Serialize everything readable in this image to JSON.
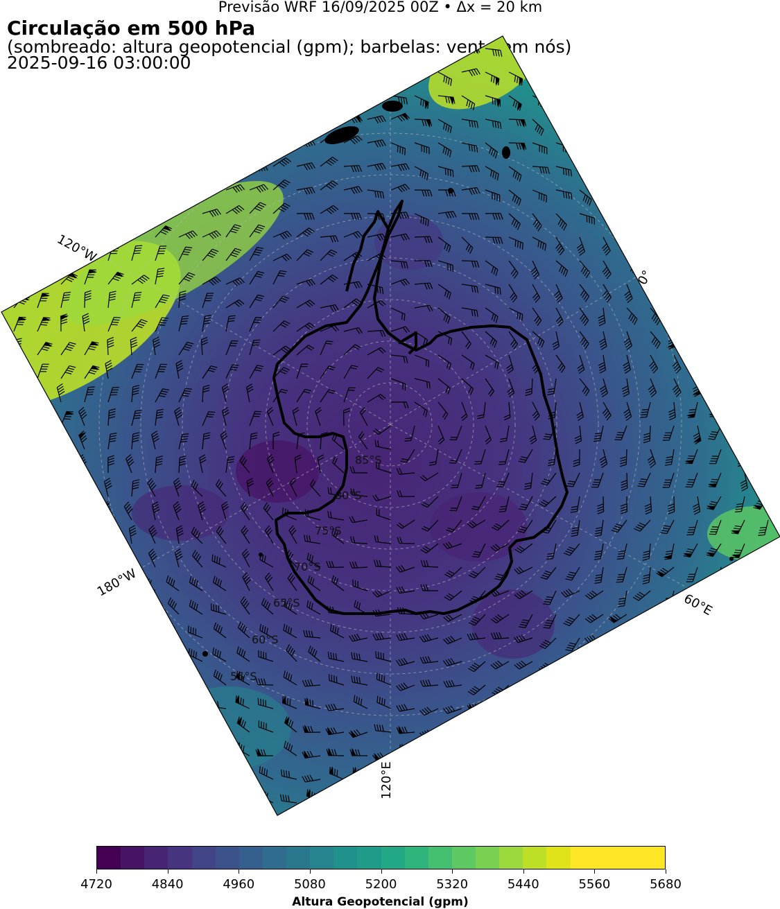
{
  "header": {
    "suptitle": "Previsão WRF 16/09/2025 00Z • Δx = 20 km",
    "title": "Circulação em 500 hPa",
    "subtitle": "(sombreado: altura geopotencial (gpm); barbelas: vento em nós)",
    "valid_time": "2025-09-16 03:00:00"
  },
  "map": {
    "projection": "south-polar-stereographic",
    "field": "geopotential-height-500hPa",
    "longitude_labels": [
      "120°W",
      "0°",
      "60°E",
      "120°E",
      "180°W"
    ],
    "latitude_labels": [
      "85°S",
      "80°S",
      "75°S",
      "70°S",
      "65°S",
      "60°S",
      "55°S"
    ],
    "coastline_color": "#000000",
    "graticule_color": "#bbbbbb"
  },
  "colorbar": {
    "label": "Altura Geopotencial (gpm)",
    "min": 4720,
    "max": 5680,
    "step": 40,
    "tick_labels": [
      "4720",
      "4840",
      "4960",
      "5080",
      "5200",
      "5320",
      "5440",
      "5560",
      "5680"
    ],
    "colors": [
      "#440154",
      "#471365",
      "#482475",
      "#463480",
      "#414487",
      "#3b528b",
      "#355f8d",
      "#2f6c8e",
      "#2a788e",
      "#25848e",
      "#21918c",
      "#1e9c89",
      "#22a884",
      "#2fb47c",
      "#44bf70",
      "#5ec962",
      "#7ad151",
      "#9bd93c",
      "#bddf26",
      "#dfe318",
      "#fde725",
      "#fde725",
      "#fde725",
      "#fde725"
    ]
  }
}
